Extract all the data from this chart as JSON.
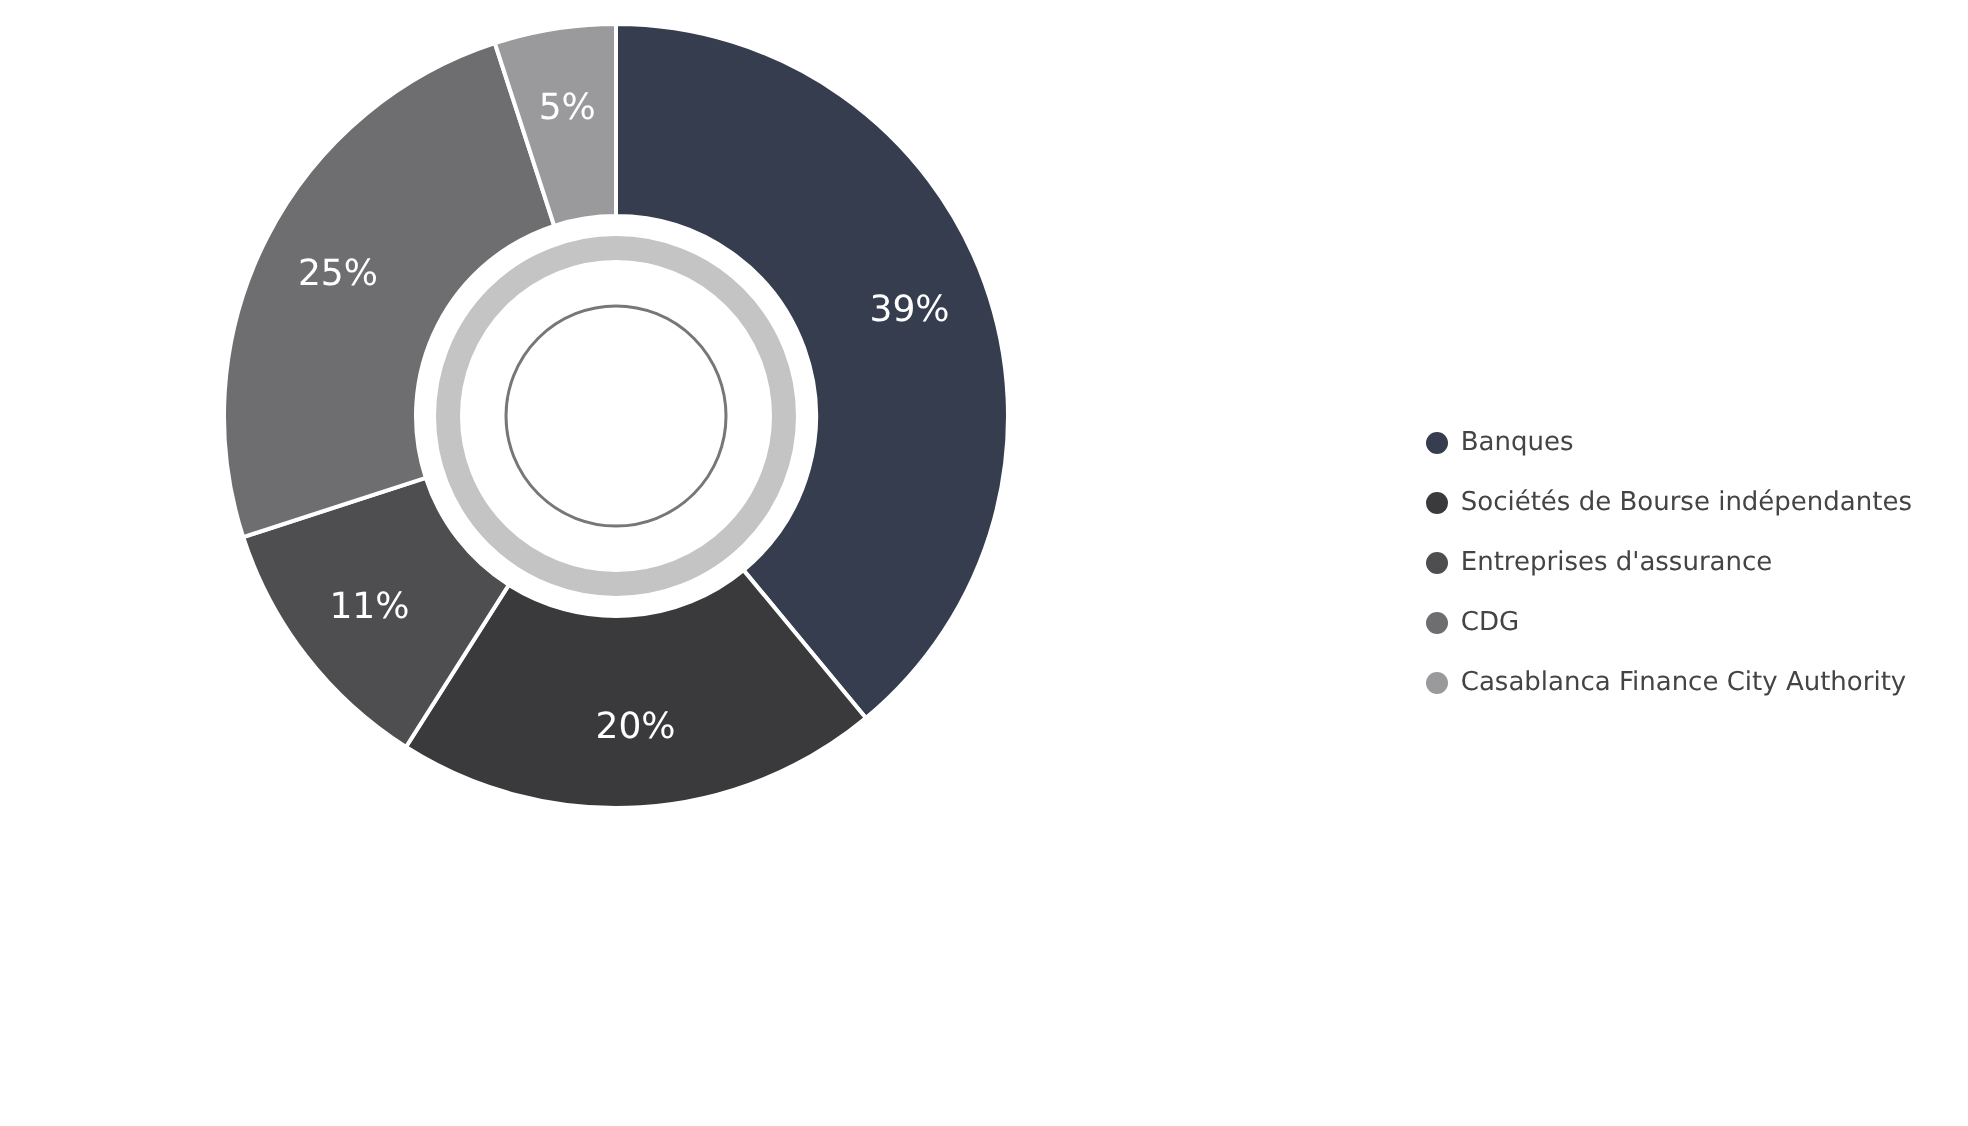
{
  "chart_data": {
    "type": "donut",
    "categories": [
      "Banques",
      "Sociétés de Bourse indépendantes",
      "Entreprises d'assurance",
      "CDG",
      "Casablanca Finance City Authority"
    ],
    "values": [
      39,
      20,
      11,
      25,
      5
    ],
    "value_labels": [
      "39%",
      "20%",
      "11%",
      "25%",
      "5%"
    ],
    "colors": [
      "#363d4f",
      "#3a3a3c",
      "#4e4e50",
      "#6e6e70",
      "#9a9a9c"
    ],
    "legend": "right"
  }
}
